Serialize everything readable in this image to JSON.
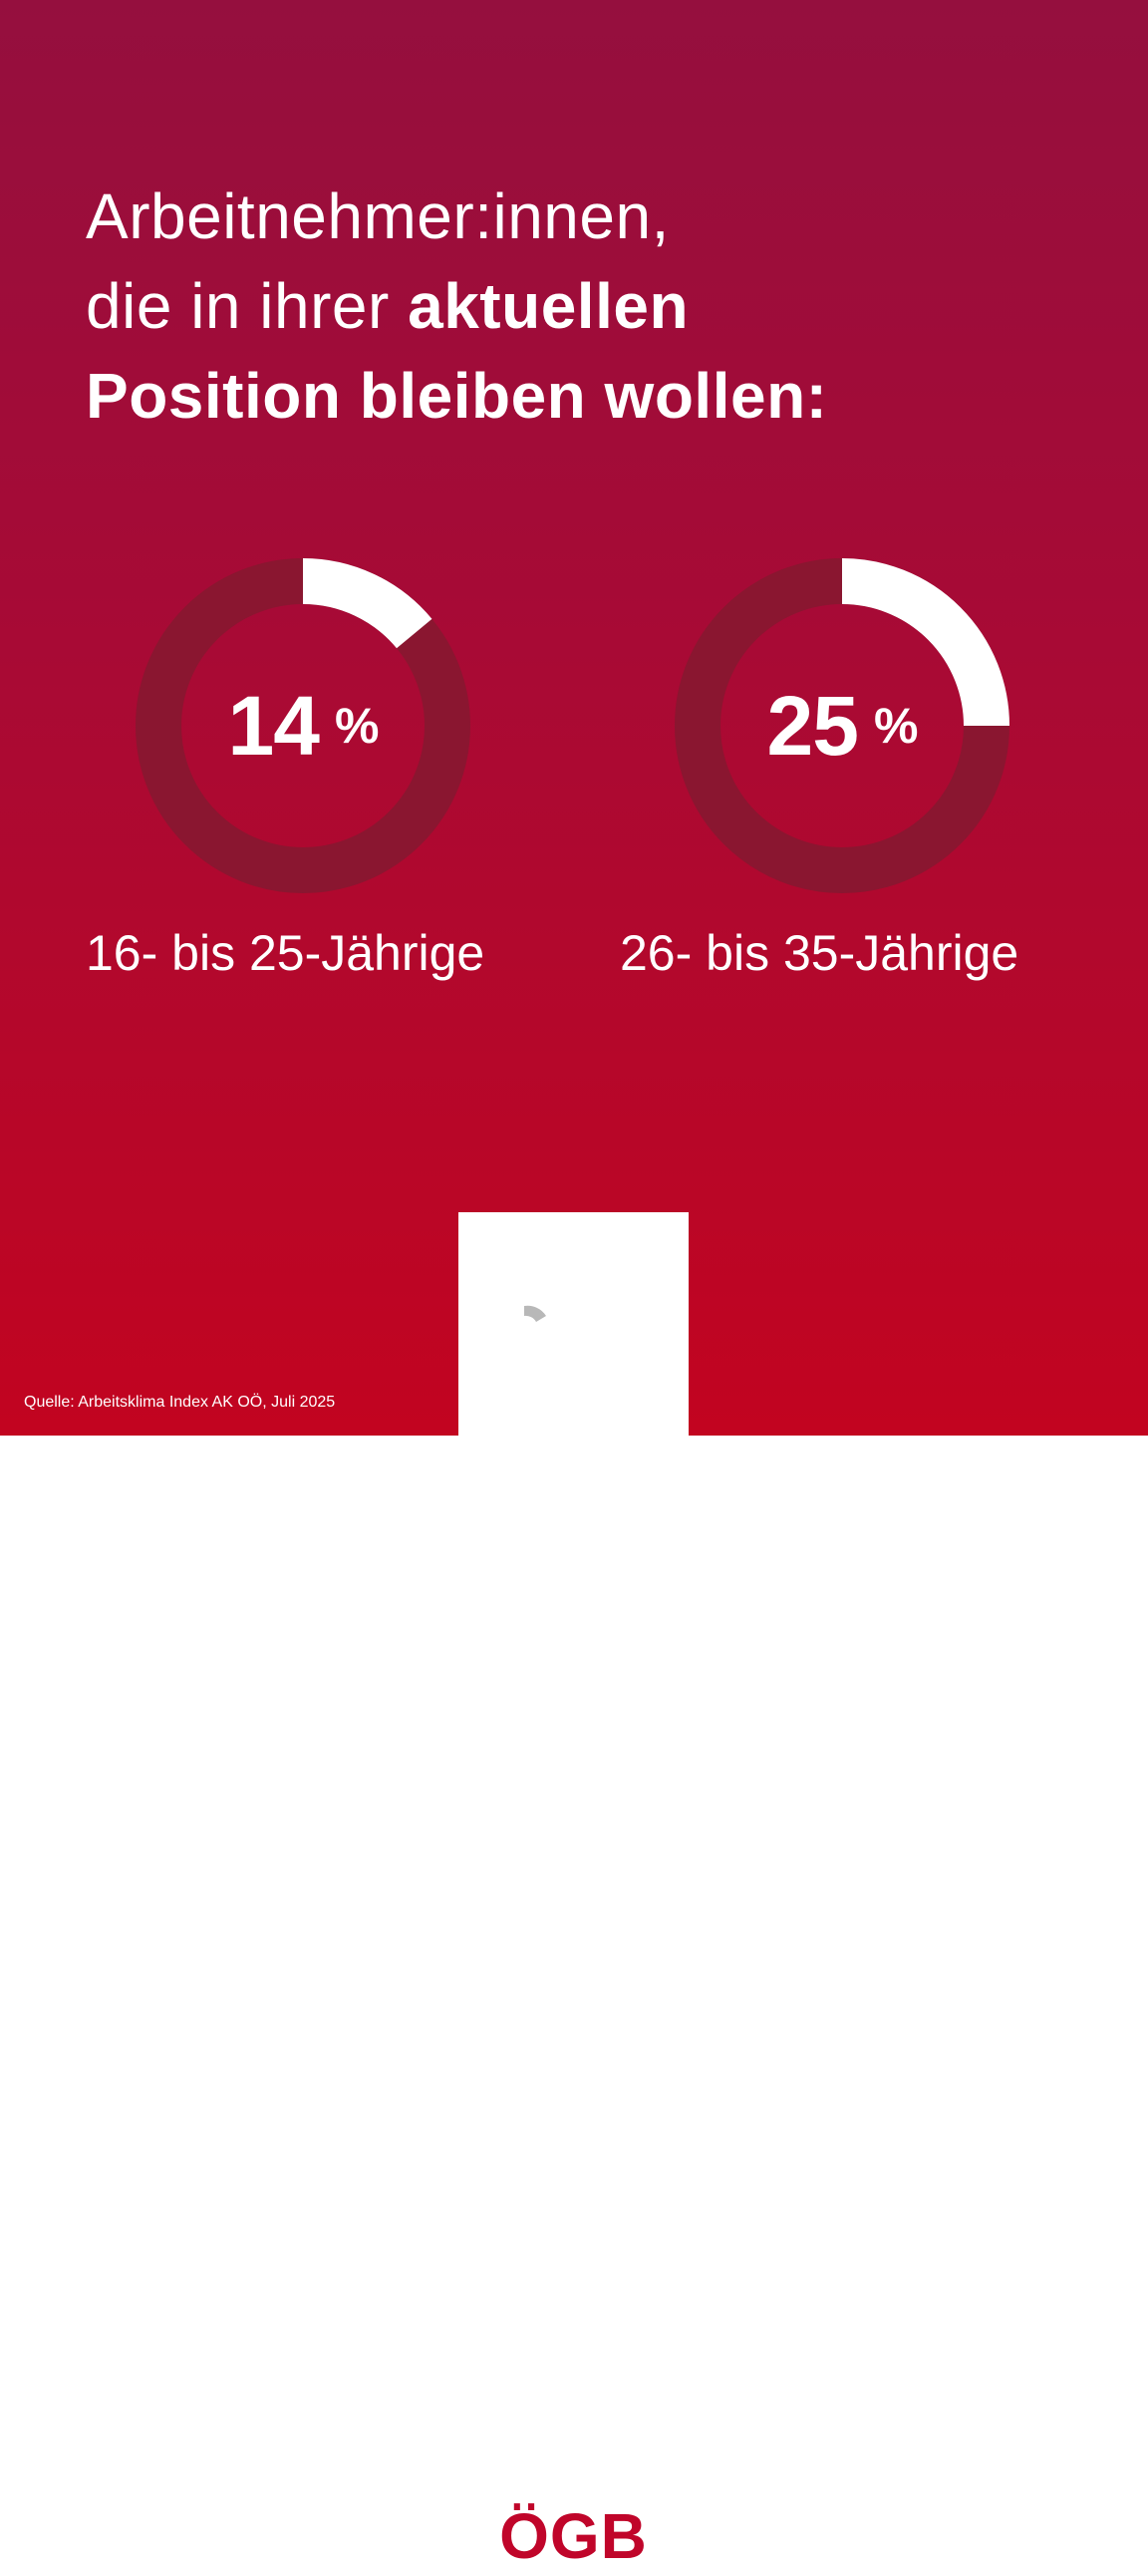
{
  "title": {
    "line1": "Arbeitnehmer:innen,",
    "line2_regular": "die in ihrer ",
    "line2_bold": "aktuellen",
    "line3_bold": "Position bleiben wollen:"
  },
  "chart_data": [
    {
      "type": "pie",
      "category": "16- bis 25-Jährige",
      "value": 14,
      "unit": "%",
      "value_text": "14",
      "unit_text": "%"
    },
    {
      "type": "pie",
      "category": "26- bis 35-Jährige",
      "value": 25,
      "unit": "%",
      "value_text": "25",
      "unit_text": "%"
    }
  ],
  "colors": {
    "background_top": "#950f3e",
    "background_bottom": "#c20420",
    "ring_track": "#8a1630",
    "ring_fill": "#ffffff",
    "logo_red": "#c0052a",
    "logo_grey": "#b8b8b8"
  },
  "logo": {
    "text": "ÖGB"
  },
  "source": "Quelle: Arbeitsklima Index AK OÖ, Juli 2025"
}
